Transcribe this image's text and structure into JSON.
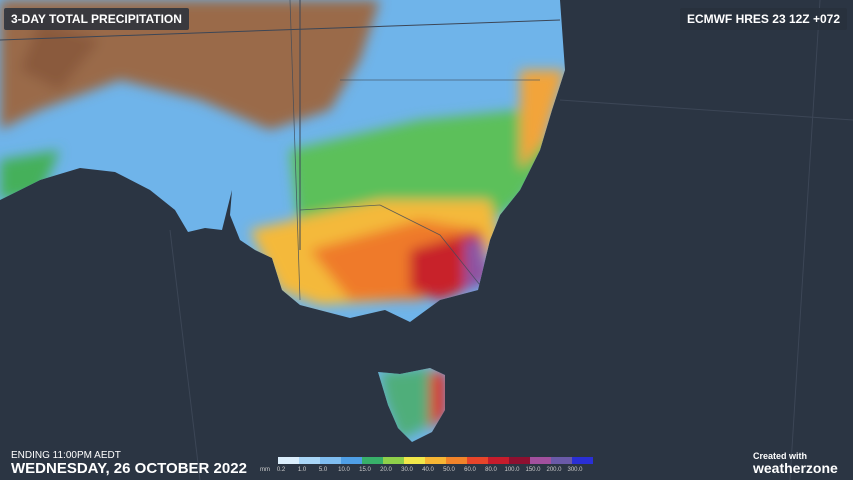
{
  "header": {
    "title": "3-DAY TOTAL PRECIPITATION",
    "model": "ECMWF HRES 23 12Z +072"
  },
  "footer": {
    "ending": "ENDING 11:00PM AEDT",
    "date": "WEDNESDAY, 26 OCTOBER 2022",
    "credit": "Created with",
    "brand": "weatherzone"
  },
  "legend": {
    "unit": "mm",
    "items": [
      {
        "label": "0.2",
        "color": "#dbeefc"
      },
      {
        "label": "1.0",
        "color": "#a9d6f7"
      },
      {
        "label": "5.0",
        "color": "#7fbdf0"
      },
      {
        "label": "10.0",
        "color": "#4f9fe6"
      },
      {
        "label": "15.0",
        "color": "#38b06a"
      },
      {
        "label": "20.0",
        "color": "#8fd04a"
      },
      {
        "label": "30.0",
        "color": "#f2e84a"
      },
      {
        "label": "40.0",
        "color": "#f7b634"
      },
      {
        "label": "50.0",
        "color": "#f2842a"
      },
      {
        "label": "60.0",
        "color": "#e8452a"
      },
      {
        "label": "80.0",
        "color": "#c61c2c"
      },
      {
        "label": "100.0",
        "color": "#8e1030"
      },
      {
        "label": "150.0",
        "color": "#a2509e"
      },
      {
        "label": "200.0",
        "color": "#6a5aa8"
      },
      {
        "label": "300.0",
        "color": "#2a2fd6"
      }
    ]
  }
}
